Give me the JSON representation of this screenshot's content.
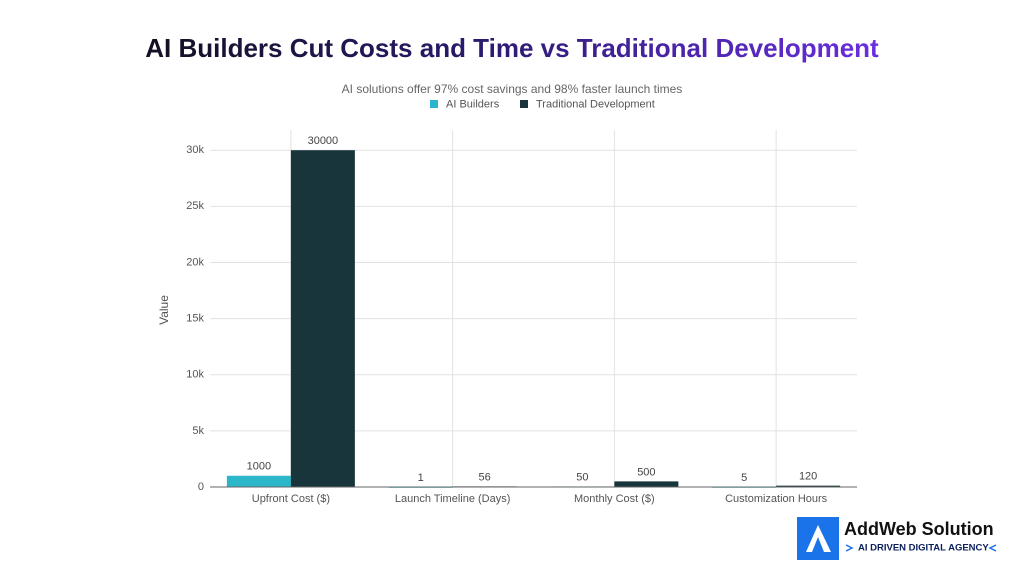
{
  "chart_data": {
    "type": "bar",
    "title": "AI Builders Cut Costs and Time vs Traditional Development",
    "subtitle": "AI solutions offer 97% cost savings and 98% faster launch times",
    "y_label": "Value",
    "categories": [
      "Upfront Cost ($)",
      "Launch Timeline (Days)",
      "Monthly Cost ($)",
      "Customization Hours"
    ],
    "series": [
      {
        "name": "AI Builders",
        "color": "#2bb7c9",
        "values": [
          1000,
          1,
          50,
          5
        ]
      },
      {
        "name": "Traditional Development",
        "color": "#17353b",
        "values": [
          30000,
          56,
          500,
          120
        ]
      }
    ],
    "ylim": [
      0,
      31800
    ],
    "yticks": [
      0,
      {
        "value": 5000,
        "label": "5k"
      },
      {
        "value": 10000,
        "label": "10k"
      },
      {
        "value": 15000,
        "label": "15k"
      },
      {
        "value": 20000,
        "label": "20k"
      },
      {
        "value": 25000,
        "label": "25k"
      },
      {
        "value": 30000,
        "label": "30k"
      }
    ],
    "grid": true,
    "legend": "top"
  },
  "logo": {
    "name": "AddWeb Solution",
    "tagline": "AI DRIVEN DIGITAL AGENCY"
  }
}
